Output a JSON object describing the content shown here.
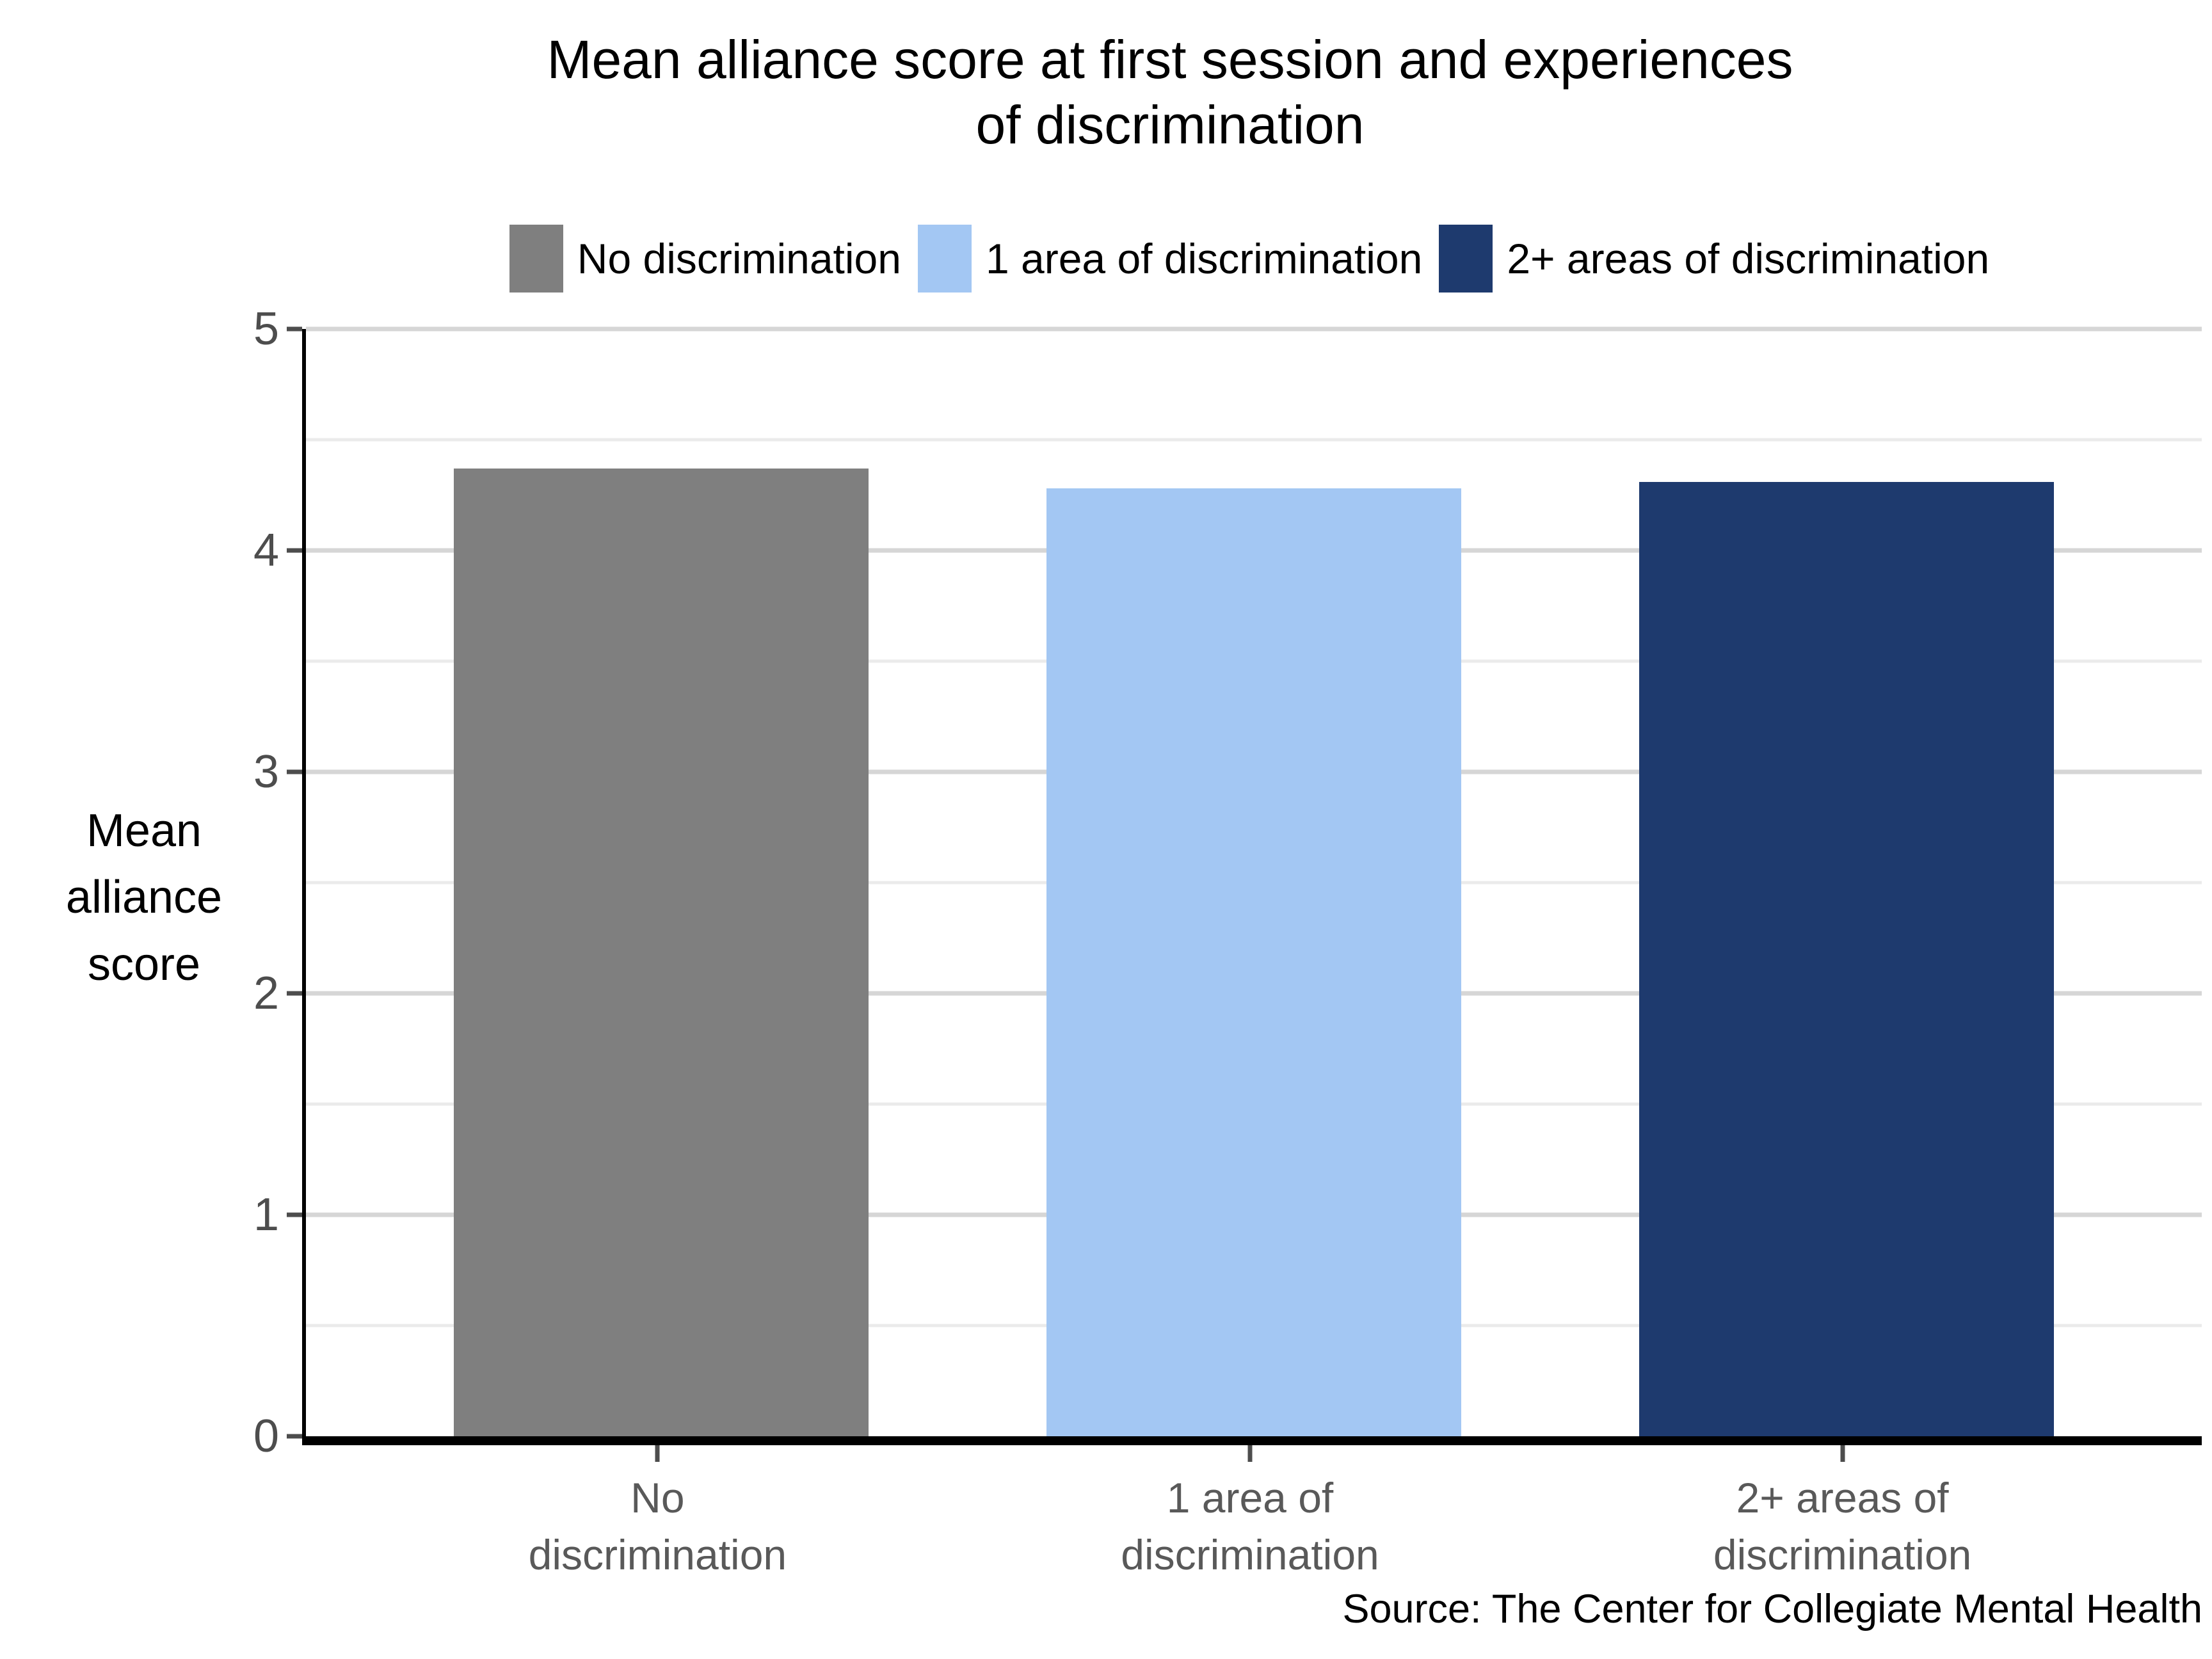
{
  "chart_data": {
    "type": "bar",
    "title": "Mean alliance score at first session and experiences\nof discrimination",
    "ylabel": "Mean\nalliance\nscore",
    "ylim": [
      0,
      5
    ],
    "yticks": [
      0,
      1,
      2,
      3,
      4,
      5
    ],
    "minor_grid_step": 0.5,
    "grid": "horizontal",
    "categories": [
      "No\ndiscrimination",
      "1 area of\ndiscrimination",
      "2+ areas of\ndiscrimination"
    ],
    "values": [
      4.37,
      4.28,
      4.31
    ],
    "bar_colors": [
      "#7F7F7F",
      "#A3C7F3",
      "#1E3A6E"
    ],
    "legend_position": "top",
    "legend": [
      {
        "label": "No discrimination",
        "color": "#7F7F7F"
      },
      {
        "label": "1 area of discrimination",
        "color": "#A3C7F3"
      },
      {
        "label": "2+ areas of discrimination",
        "color": "#1E3A6E"
      }
    ],
    "source": "Source: The Center for Collegiate Mental Health"
  }
}
